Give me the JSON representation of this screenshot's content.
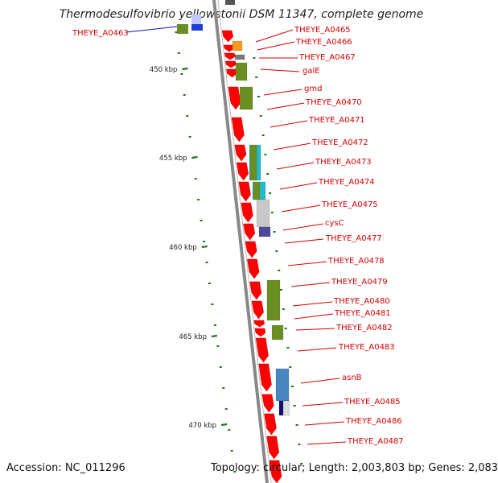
{
  "title": "Thermodesulfovibrio yellowstonii DSM 11347, complete genome",
  "footer": {
    "accession": "Accession: NC_011296",
    "topology": "Topology: circular; Length: 2,003,803 bp; Genes: 2,083"
  },
  "kbp_labels": [
    "450 kbp",
    "455 kbp",
    "460 kbp",
    "465 kbp",
    "470 kbp"
  ],
  "gene_labels": [
    {
      "text": "THEYE_A0463",
      "color": "#1010cc"
    },
    {
      "text": "THEYE_A0465",
      "color": "#d40000"
    },
    {
      "text": "THEYE_A0466",
      "color": "#d40000"
    },
    {
      "text": "THEYE_A0467",
      "color": "#d40000"
    },
    {
      "text": "galE",
      "color": "#d40000"
    },
    {
      "text": "gmd",
      "color": "#d40000"
    },
    {
      "text": "THEYE_A0470",
      "color": "#d40000"
    },
    {
      "text": "THEYE_A0471",
      "color": "#d40000"
    },
    {
      "text": "THEYE_A0472",
      "color": "#d40000"
    },
    {
      "text": "THEYE_A0473",
      "color": "#d40000"
    },
    {
      "text": "THEYE_A0474",
      "color": "#d40000"
    },
    {
      "text": "THEYE_A0475",
      "color": "#d40000"
    },
    {
      "text": "cysC",
      "color": "#d40000"
    },
    {
      "text": "THEYE_A0477",
      "color": "#d40000"
    },
    {
      "text": "THEYE_A0478",
      "color": "#d40000"
    },
    {
      "text": "THEYE_A0479",
      "color": "#d40000"
    },
    {
      "text": "THEYE_A0480",
      "color": "#d40000"
    },
    {
      "text": "THEYE_A0481",
      "color": "#d40000"
    },
    {
      "text": "THEYE_A0482",
      "color": "#d40000"
    },
    {
      "text": "THEYE_A0483",
      "color": "#d40000"
    },
    {
      "text": "asnB",
      "color": "#d40000"
    },
    {
      "text": "THEYE_A0485",
      "color": "#d40000"
    },
    {
      "text": "THEYE_A0486",
      "color": "#d40000"
    },
    {
      "text": "THEYE_A0487",
      "color": "#d40000"
    }
  ],
  "colors": {
    "backbone": "#888888",
    "cds": "#ff0000",
    "gc_ticks": "#1a7a1a",
    "label_line": "#d40000",
    "cog_olive": "#6b8e23",
    "cog_cyan": "#22bbcc",
    "cog_grey": "#c8c8c8",
    "cog_purple": "#4a4a99",
    "cog_orange": "#f39a1e",
    "cog_blue": "#1f3fd0",
    "cog_steel": "#4a86c0",
    "cog_navy": "#101070"
  }
}
